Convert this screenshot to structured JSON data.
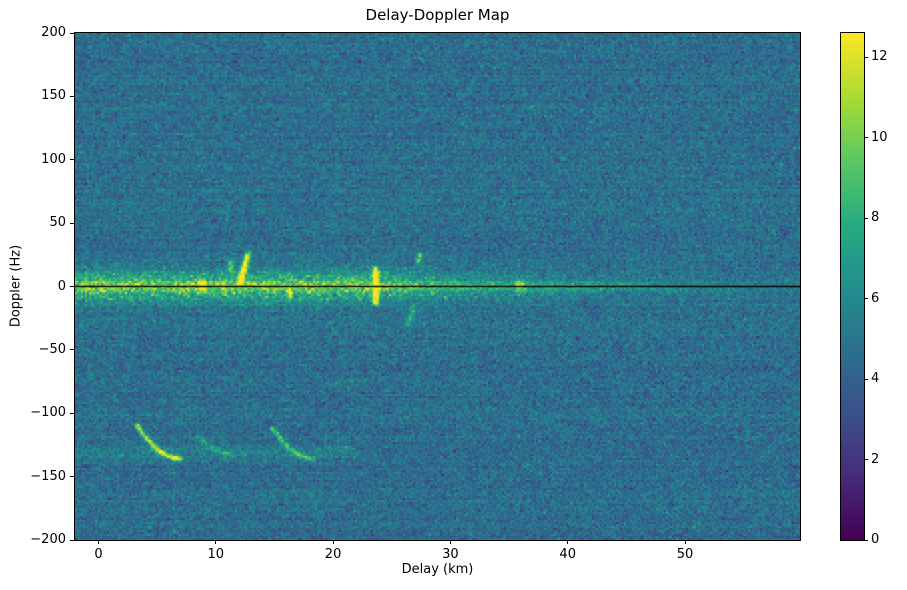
{
  "chart_data": {
    "type": "heatmap",
    "title": "Delay-Doppler Map",
    "xlabel": "Delay (km)",
    "ylabel": "Doppler (Hz)",
    "xlim": [
      -2,
      59.8
    ],
    "ylim": [
      -200,
      200
    ],
    "xticks": [
      0,
      10,
      20,
      30,
      40,
      50
    ],
    "yticks": [
      200,
      150,
      100,
      50,
      0,
      -50,
      -100,
      -150,
      -200
    ],
    "colormap": "viridis",
    "colorbar": {
      "min": 0,
      "max": 12.6,
      "ticks": [
        0,
        2,
        4,
        6,
        8,
        10,
        12
      ]
    },
    "noise": {
      "mean": 4.6,
      "std": 0.85,
      "row_variation": 0.2
    },
    "features": {
      "zero_doppler_line": {
        "doppler_hz": 0,
        "color": "#000000"
      },
      "clutter_ridge": {
        "doppler_center_hz": 0,
        "sigma_hz": 9,
        "amp": 2.3,
        "speckle": 2.2,
        "fade_start_km": 22,
        "fade_scale_km": 14,
        "narrow_sigma_hz": 2.6,
        "narrow_amp": 1.6,
        "narrow_fade_start_km": 42,
        "narrow_fade_scale_km": 10
      },
      "targets": [
        {
          "delay_km": 12.4,
          "doppler_hz": [
            4,
            26
          ],
          "width_km": 0.5,
          "amp": 7.5,
          "slant_km": 0.7
        },
        {
          "delay_km": 11.3,
          "doppler_hz": [
            13,
            20
          ],
          "width_km": 0.45,
          "amp": 4.0,
          "slant_km": 0
        },
        {
          "delay_km": 23.6,
          "doppler_hz": [
            -13,
            14
          ],
          "width_km": 0.5,
          "amp": 7.5,
          "slant_km": 0
        },
        {
          "delay_km": 8.8,
          "doppler_hz": [
            -3,
            4
          ],
          "width_km": 0.5,
          "amp": 5.0,
          "slant_km": 0
        },
        {
          "delay_km": 27.3,
          "doppler_hz": [
            19,
            27
          ],
          "width_km": 0.4,
          "amp": 4.0,
          "slant_km": 0.3
        },
        {
          "delay_km": 16.3,
          "doppler_hz": [
            -9,
            -3
          ],
          "width_km": 0.5,
          "amp": 3.0,
          "slant_km": 0
        },
        {
          "delay_km": 26.6,
          "doppler_hz": [
            -30,
            -17
          ],
          "width_km": 0.5,
          "amp": 2.4,
          "slant_km": 0.4
        },
        {
          "delay_km": 36.0,
          "doppler_hz": [
            -3,
            3
          ],
          "width_km": 0.9,
          "amp": 2.2,
          "slant_km": 0
        }
      ],
      "arcs": [
        {
          "start_km_hz": [
            3.3,
            -110
          ],
          "end_km_hz": [
            7.0,
            -136
          ],
          "amp": 5.5
        },
        {
          "start_km_hz": [
            14.8,
            -112
          ],
          "end_km_hz": [
            18.3,
            -136
          ],
          "amp": 3.4
        },
        {
          "start_km_hz": [
            8.5,
            -118
          ],
          "end_km_hz": [
            11.5,
            -133
          ],
          "amp": 1.8
        }
      ],
      "faint_band": {
        "doppler_hz": -131,
        "sigma_hz": 4,
        "amp": 1.0,
        "delay_range_km": [
          -2,
          22
        ]
      }
    }
  }
}
